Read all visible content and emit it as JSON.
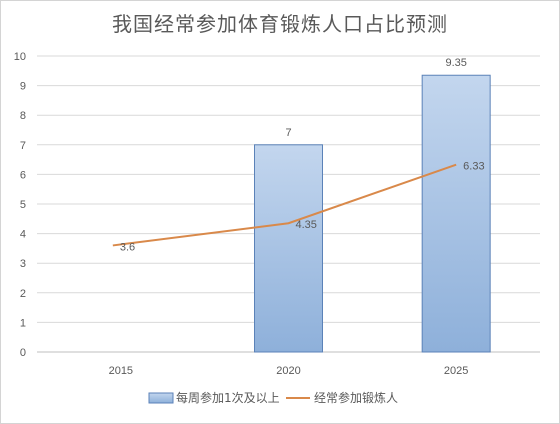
{
  "chart_data": {
    "type": "bar",
    "title": "我国经常参加体育锻炼人口占比预测",
    "categories": [
      "2015",
      "2020",
      "2025"
    ],
    "series": [
      {
        "name": "每周参加1次及以上",
        "type": "bar",
        "values": [
          null,
          7,
          9.35
        ],
        "color": "#9dbbe0"
      },
      {
        "name": "经常参加锻炼人",
        "type": "line",
        "values": [
          3.6,
          4.35,
          6.33
        ],
        "color": "#d9894a"
      }
    ],
    "data_labels": {
      "bar": [
        "",
        "7",
        "9.35"
      ],
      "line": [
        "3.6",
        "4.35",
        "6.33"
      ]
    },
    "ylim": [
      0,
      10
    ],
    "yticks": [
      "0",
      "1",
      "2",
      "3",
      "4",
      "5",
      "6",
      "7",
      "8",
      "9",
      "10"
    ],
    "grid": true,
    "legend_position": "bottom"
  }
}
